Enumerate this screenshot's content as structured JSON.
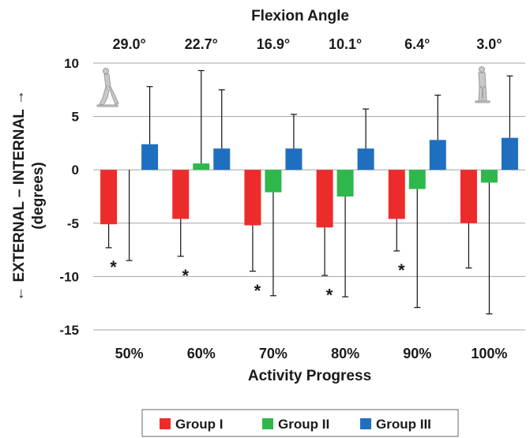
{
  "chart_data": {
    "type": "bar",
    "top_axis": {
      "title": "Flexion Angle",
      "labels": [
        "29.0°",
        "22.7°",
        "16.9°",
        "10.1°",
        "6.4°",
        "3.0°"
      ]
    },
    "categories": [
      "50%",
      "60%",
      "70%",
      "80%",
      "90%",
      "100%"
    ],
    "xlabel": "Activity Progress",
    "ylabel_line1": "← EXTERNAL – INTERNAL →",
    "ylabel_line2": "(degrees)",
    "ylim": [
      -15,
      10
    ],
    "yticks": [
      10,
      5,
      0,
      -5,
      -10,
      -15
    ],
    "ytick_labels": [
      "10",
      "5",
      "0",
      "-5",
      "-10",
      "-15"
    ],
    "grid": true,
    "legend_position": "bottom",
    "series": [
      {
        "name": "Group I",
        "color": "#ee2b2b",
        "values": [
          -5.1,
          -4.6,
          -5.2,
          -5.4,
          -4.6,
          -5.0
        ],
        "err_low": [
          -7.3,
          -8.1,
          -9.5,
          -9.9,
          -7.6,
          -9.2
        ],
        "err_high": [
          -5.1,
          -4.6,
          -5.2,
          -5.4,
          -4.6,
          -5.0
        ]
      },
      {
        "name": "Group II",
        "color": "#2eb84b",
        "values": [
          0.0,
          0.6,
          -2.1,
          -2.5,
          -1.8,
          -1.2
        ],
        "err_low": [
          -8.5,
          0.6,
          -11.8,
          -11.9,
          -12.9,
          -13.5
        ],
        "err_high": [
          0.0,
          9.3,
          -2.1,
          -2.5,
          -1.8,
          -1.2
        ]
      },
      {
        "name": "Group III",
        "color": "#1f6fc0",
        "values": [
          2.4,
          2.0,
          2.0,
          2.0,
          2.8,
          3.0
        ],
        "err_low": [
          2.4,
          2.0,
          2.0,
          2.0,
          2.8,
          3.0
        ],
        "err_high": [
          7.8,
          7.5,
          5.2,
          5.7,
          7.0,
          8.8
        ]
      }
    ],
    "annotations": [
      {
        "category_index": 0,
        "text": "*",
        "y": -8.8
      },
      {
        "category_index": 1,
        "text": "*",
        "y": -9.6
      },
      {
        "category_index": 2,
        "text": "*",
        "y": -11.0
      },
      {
        "category_index": 3,
        "text": "*",
        "y": -11.4
      },
      {
        "category_index": 4,
        "text": "*",
        "y": -9.1
      }
    ]
  },
  "icons": {
    "left": "walking-figure-icon",
    "right": "standing-figure-icon"
  }
}
